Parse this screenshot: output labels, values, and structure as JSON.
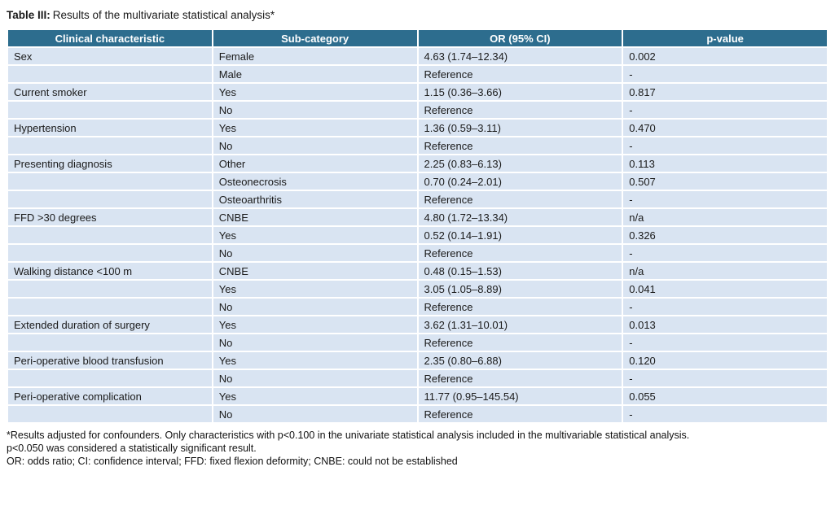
{
  "title": {
    "label": "Table III:",
    "text": "Results of the multivariate statistical analysis*"
  },
  "table": {
    "columns": [
      "Clinical characteristic",
      "Sub-category",
      "OR (95% CI)",
      "p-value"
    ],
    "rows": [
      [
        "Sex",
        "Female",
        "4.63 (1.74–12.34)",
        "0.002"
      ],
      [
        "",
        "Male",
        "Reference",
        "-"
      ],
      [
        "Current smoker",
        "Yes",
        "1.15 (0.36–3.66)",
        "0.817"
      ],
      [
        "",
        "No",
        "Reference",
        "-"
      ],
      [
        "Hypertension",
        "Yes",
        "1.36 (0.59–3.11)",
        "0.470"
      ],
      [
        "",
        "No",
        "Reference",
        "-"
      ],
      [
        "Presenting diagnosis",
        "Other",
        "2.25 (0.83–6.13)",
        "0.113"
      ],
      [
        "",
        "Osteonecrosis",
        "0.70 (0.24–2.01)",
        "0.507"
      ],
      [
        "",
        "Osteoarthritis",
        "Reference",
        "-"
      ],
      [
        "FFD >30 degrees",
        "CNBE",
        "4.80 (1.72–13.34)",
        "n/a"
      ],
      [
        "",
        "Yes",
        "0.52 (0.14–1.91)",
        "0.326"
      ],
      [
        "",
        "No",
        "Reference",
        "-"
      ],
      [
        "Walking distance <100 m",
        "CNBE",
        "0.48 (0.15–1.53)",
        "n/a"
      ],
      [
        "",
        "Yes",
        "3.05 (1.05–8.89)",
        "0.041"
      ],
      [
        "",
        "No",
        "Reference",
        "-"
      ],
      [
        "Extended duration of surgery",
        "Yes",
        "3.62 (1.31–10.01)",
        "0.013"
      ],
      [
        "",
        "No",
        "Reference",
        "-"
      ],
      [
        "Peri-operative blood transfusion",
        "Yes",
        "2.35 (0.80–6.88)",
        "0.120"
      ],
      [
        "",
        "No",
        "Reference",
        "-"
      ],
      [
        "Peri-operative complication",
        "Yes",
        "11.77 (0.95–145.54)",
        "0.055"
      ],
      [
        "",
        "No",
        "Reference",
        "-"
      ]
    ]
  },
  "footnotes": [
    "*Results adjusted for confounders. Only characteristics with p<0.100 in the univariate statistical analysis included in the multivariable statistical analysis.",
    "p<0.050 was considered a statistically significant result.",
    "OR: odds ratio; CI: confidence interval; FFD: fixed flexion deformity; CNBE: could not be established"
  ],
  "colors": {
    "header_bg": "#2d6d8e",
    "row_bg": "#d9e4f2",
    "header_text": "#ffffff",
    "cell_text": "#1a1a1a",
    "grid": "#ffffff"
  }
}
